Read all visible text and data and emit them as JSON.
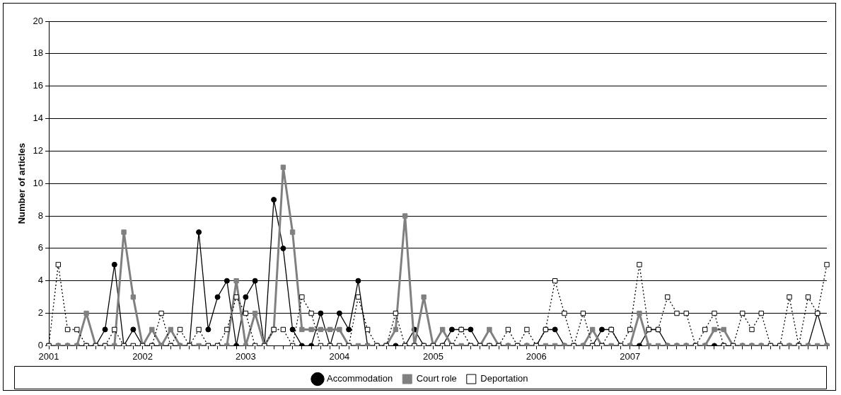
{
  "chart_data": {
    "type": "line",
    "ylabel": "Number of articles",
    "categories": [
      "2001",
      null,
      null,
      null,
      null,
      null,
      null,
      null,
      null,
      null,
      "2002",
      null,
      null,
      null,
      null,
      null,
      null,
      null,
      null,
      null,
      null,
      "2003",
      null,
      null,
      null,
      null,
      null,
      null,
      null,
      null,
      null,
      "2004",
      null,
      null,
      null,
      null,
      null,
      null,
      null,
      null,
      null,
      "2005",
      null,
      null,
      null,
      null,
      null,
      null,
      null,
      null,
      null,
      null,
      "2006",
      null,
      null,
      null,
      null,
      null,
      null,
      null,
      null,
      null,
      "2007",
      null,
      null,
      null,
      null,
      null,
      null,
      null,
      null,
      null,
      null,
      null,
      null,
      null,
      null,
      null,
      null,
      null,
      null,
      null,
      null,
      null
    ],
    "ylim": [
      0,
      20
    ],
    "yticks": [
      0,
      2,
      4,
      6,
      8,
      10,
      12,
      14,
      16,
      18,
      20
    ],
    "grid": "y",
    "legend": "bottom",
    "series": [
      {
        "name": "Accommodation",
        "color": "#000000",
        "marker": "circle",
        "line_style": "solid",
        "values": [
          0,
          0,
          0,
          0,
          0,
          0,
          1,
          5,
          0,
          1,
          0,
          0,
          0,
          0,
          0,
          0,
          7,
          1,
          3,
          4,
          0,
          3,
          4,
          0,
          9,
          6,
          1,
          0,
          0,
          2,
          0,
          2,
          1,
          4,
          0,
          0,
          0,
          0,
          0,
          1,
          0,
          0,
          0,
          1,
          1,
          1,
          0,
          0,
          0,
          0,
          0,
          0,
          0,
          1,
          1,
          0,
          0,
          0,
          0,
          1,
          1,
          0,
          0,
          0,
          1,
          1,
          0,
          0,
          0,
          0,
          0,
          0,
          0,
          0,
          0,
          0,
          0,
          0,
          0,
          0,
          0,
          0,
          2,
          0
        ]
      },
      {
        "name": "Court role",
        "color": "#808080",
        "marker": "square",
        "line_style": "solid",
        "values": [
          0,
          0,
          0,
          0,
          2,
          0,
          0,
          0,
          7,
          3,
          0,
          1,
          0,
          1,
          0,
          0,
          0,
          0,
          0,
          0,
          4,
          0,
          2,
          0,
          1,
          11,
          7,
          1,
          1,
          1,
          1,
          1,
          0,
          0,
          0,
          0,
          0,
          1,
          8,
          0,
          3,
          0,
          1,
          0,
          0,
          0,
          0,
          1,
          0,
          0,
          0,
          0,
          0,
          0,
          0,
          0,
          0,
          0,
          1,
          0,
          0,
          0,
          0,
          2,
          0,
          0,
          0,
          0,
          0,
          0,
          0,
          1,
          1,
          0,
          0,
          0,
          0,
          0,
          0,
          0,
          0,
          0,
          0,
          0
        ]
      },
      {
        "name": "Deportation",
        "color": "#000000",
        "marker": "square",
        "line_style": "dotted",
        "values": [
          0,
          5,
          1,
          1,
          0,
          0,
          0,
          1,
          0,
          0,
          0,
          0,
          2,
          0,
          1,
          0,
          1,
          0,
          0,
          1,
          3,
          2,
          0,
          0,
          1,
          1,
          0,
          3,
          2,
          0,
          0,
          0,
          0,
          3,
          1,
          0,
          0,
          2,
          0,
          0,
          0,
          0,
          0,
          0,
          1,
          0,
          0,
          0,
          0,
          1,
          0,
          1,
          0,
          1,
          4,
          2,
          0,
          2,
          0,
          0,
          1,
          0,
          1,
          5,
          1,
          1,
          3,
          2,
          2,
          0,
          1,
          2,
          0,
          0,
          2,
          1,
          2,
          0,
          0,
          3,
          0,
          3,
          2,
          5
        ]
      }
    ]
  }
}
